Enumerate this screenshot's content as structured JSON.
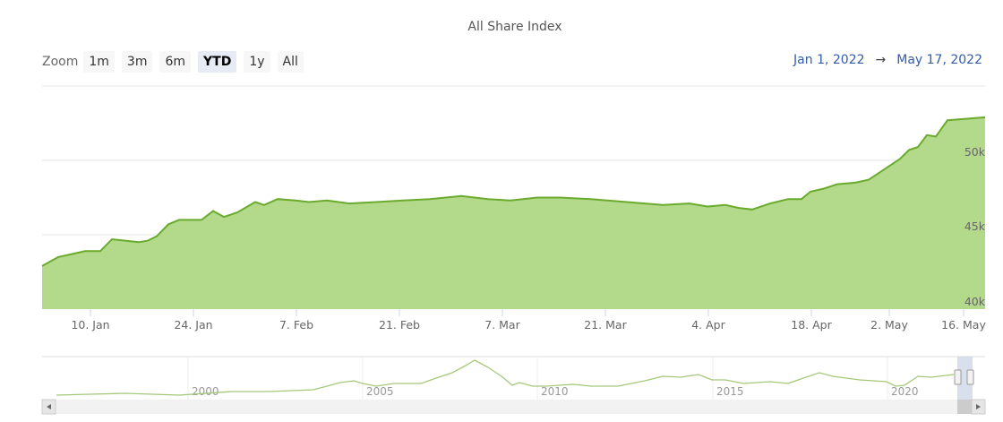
{
  "title": "All Share Index",
  "zoom": {
    "label": "Zoom",
    "buttons": [
      {
        "label": "1m",
        "active": false
      },
      {
        "label": "3m",
        "active": false
      },
      {
        "label": "6m",
        "active": false
      },
      {
        "label": "YTD",
        "active": true
      },
      {
        "label": "1y",
        "active": false
      },
      {
        "label": "All",
        "active": false
      }
    ]
  },
  "range": {
    "from": "Jan 1, 2022",
    "arrow": "→",
    "to": "May 17, 2022"
  },
  "colors": {
    "area_fill": "#b3d98a",
    "line": "#6aab2e",
    "navigator_line": "#a5c87a",
    "range_text": "#335cad"
  },
  "chart_data": {
    "type": "area",
    "title": "All Share Index",
    "xlabel": "",
    "ylabel": "",
    "ylim": [
      40000,
      54000
    ],
    "y_ticks": [
      "40k",
      "45k",
      "50k"
    ],
    "x_ticks": [
      "10. Jan",
      "24. Jan",
      "7. Feb",
      "21. Feb",
      "7. Mar",
      "21. Mar",
      "4. Apr",
      "18. Apr",
      "2. May",
      "16. May"
    ],
    "grid": true,
    "legend": "none",
    "series": [
      {
        "name": "All Share Index",
        "x": [
          "3 Jan",
          "5 Jan",
          "7 Jan",
          "10 Jan",
          "12 Jan",
          "14 Jan",
          "17 Jan",
          "19 Jan",
          "20 Jan",
          "21 Jan",
          "24 Jan",
          "25 Jan",
          "27 Jan",
          "28 Jan",
          "31 Jan",
          "1 Feb",
          "3 Feb",
          "4 Feb",
          "7 Feb",
          "9 Feb",
          "11 Feb",
          "14 Feb",
          "16 Feb",
          "21 Feb",
          "25 Feb",
          "1 Mar",
          "4 Mar",
          "8 Mar",
          "11 Mar",
          "14 Mar",
          "18 Mar",
          "22 Mar",
          "25 Mar",
          "29 Mar",
          "1 Apr",
          "4 Apr",
          "6 Apr",
          "8 Apr",
          "11 Apr",
          "13 Apr",
          "15 Apr",
          "18 Apr",
          "20 Apr",
          "22 Apr",
          "25 Apr",
          "27 Apr",
          "28 Apr",
          "2 May",
          "4 May",
          "6 May",
          "9 May",
          "10 May",
          "12 May",
          "13 May",
          "16 May",
          "17 May"
        ],
        "values": [
          42900,
          43500,
          43700,
          43900,
          43900,
          44700,
          44600,
          44500,
          44600,
          44900,
          45700,
          46000,
          46000,
          46600,
          46200,
          46500,
          47200,
          47000,
          47400,
          47300,
          47200,
          47300,
          47100,
          47200,
          47300,
          47400,
          47600,
          47400,
          47300,
          47500,
          47500,
          47400,
          47200,
          47000,
          47100,
          46900,
          47000,
          46800,
          46700,
          47100,
          47400,
          47400,
          47900,
          48100,
          48400,
          48500,
          48700,
          49500,
          50100,
          50700,
          50900,
          51700,
          51600,
          52700,
          52800,
          52900
        ]
      }
    ],
    "navigator": {
      "x_ticks": [
        "2000",
        "2005",
        "2010",
        "2015",
        "2020"
      ],
      "selected_range": "YTD 2022"
    }
  }
}
